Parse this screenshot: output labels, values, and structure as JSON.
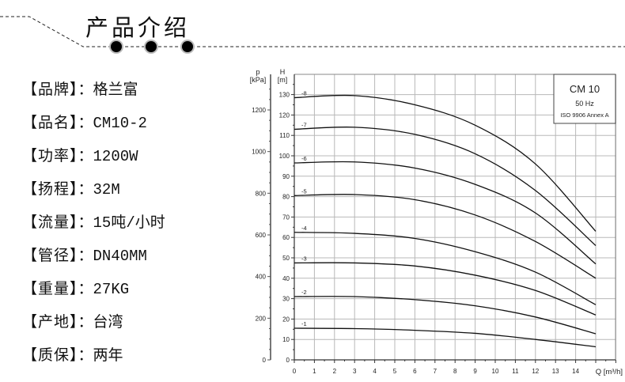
{
  "header": {
    "title": "产品介绍"
  },
  "specs": [
    {
      "label": "【品牌】",
      "sep": "：",
      "value": "格兰富"
    },
    {
      "label": "【品名】",
      "sep": "：",
      "value": "CM10-2"
    },
    {
      "label": "【功率】",
      "sep": "：",
      "value": "1200W"
    },
    {
      "label": "【扬程】",
      "sep": "：",
      "value": "32M"
    },
    {
      "label": "【流量】",
      "sep": "：",
      "value": "15吨/小时"
    },
    {
      "label": "【管径】",
      "sep": "：",
      "value": "DN40MM"
    },
    {
      "label": "【重量】",
      "sep": "：",
      "value": "27KG"
    },
    {
      "label": "【产地】",
      "sep": "：",
      "value": "台湾"
    },
    {
      "label": "【质保】",
      "sep": "：",
      "value": "两年"
    }
  ],
  "chart_data": {
    "type": "line",
    "legend_box": {
      "title": "CM 10",
      "line2": "50 Hz",
      "line3": "ISO 9906 Annex A",
      "placement": "top-right"
    },
    "xlabel": "Q [m³/h]",
    "ylabel": "H [m]",
    "ylabel_left": {
      "symbol": "p",
      "unit": "[kPa]"
    },
    "xlim": [
      0,
      16
    ],
    "ylim": [
      0,
      139
    ],
    "p_lim": [
      0,
      1200
    ],
    "x_ticks": [
      0,
      1,
      2,
      3,
      4,
      5,
      6,
      7,
      8,
      9,
      10,
      11,
      12,
      13,
      14
    ],
    "y_ticks": [
      0,
      10,
      20,
      30,
      40,
      50,
      60,
      70,
      80,
      90,
      100,
      110,
      120,
      130
    ],
    "p_ticks": [
      0,
      200,
      400,
      600,
      800,
      1000,
      1200
    ],
    "grid": true,
    "x": [
      0,
      3,
      6,
      9,
      12,
      15
    ],
    "series": [
      {
        "name": "-1",
        "values": [
          15.5,
          15.3,
          14.5,
          13,
          10,
          6.4
        ]
      },
      {
        "name": "-2",
        "values": [
          31,
          31,
          29.5,
          26.5,
          21,
          12.8
        ]
      },
      {
        "name": "-3",
        "values": [
          47.5,
          47.5,
          46,
          41.5,
          34,
          22
        ]
      },
      {
        "name": "-4",
        "values": [
          62.5,
          62,
          59.5,
          53,
          43,
          27
        ]
      },
      {
        "name": "-5",
        "values": [
          80.5,
          81,
          78.5,
          71,
          58,
          40
        ]
      },
      {
        "name": "-6",
        "values": [
          96.5,
          97,
          94,
          86,
          72,
          47
        ]
      },
      {
        "name": "-7",
        "values": [
          113,
          114,
          110.5,
          101,
          83,
          56
        ]
      },
      {
        "name": "-8",
        "values": [
          128.5,
          129.5,
          125,
          115,
          96,
          63
        ]
      }
    ]
  },
  "colors": {
    "grid": "#b8b8b8",
    "curve": "#111111",
    "dot": "#000000",
    "dot_ring": "#bbbbbb"
  }
}
